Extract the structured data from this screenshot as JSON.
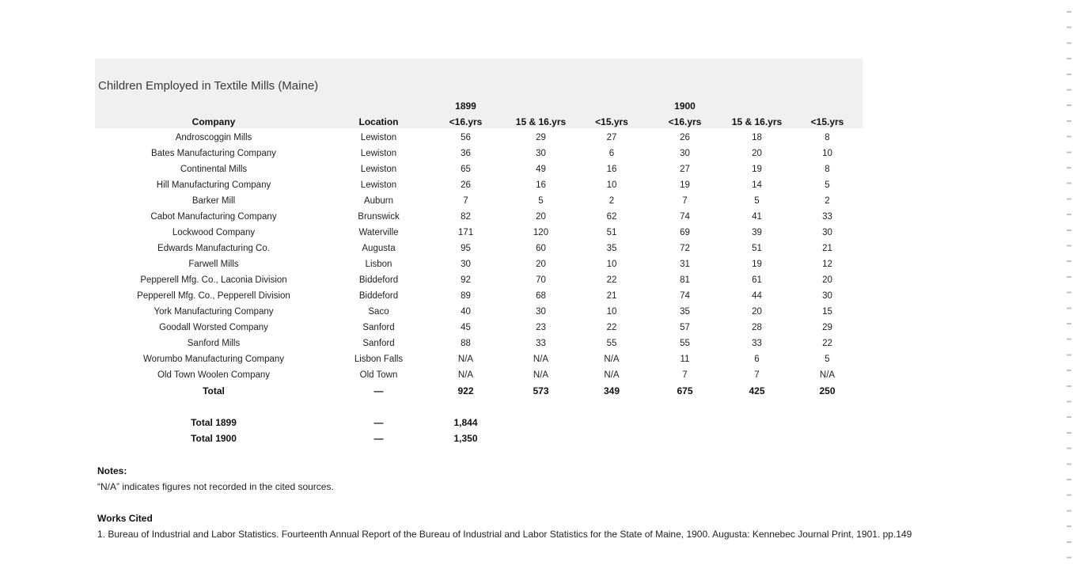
{
  "chart_data": {
    "type": "table",
    "title": "Children Employed in Textile Mills (Maine)",
    "year_groups": [
      "1899",
      "1900"
    ],
    "column_headers": [
      "Company",
      "Location",
      "<16.yrs",
      "15 & 16.yrs",
      "<15.yrs",
      "<16.yrs",
      "15 & 16.yrs",
      "<15.yrs"
    ],
    "rows": [
      [
        "Androscoggin Mills",
        "Lewiston",
        "56",
        "29",
        "27",
        "26",
        "18",
        "8"
      ],
      [
        "Bates Manufacturing Company",
        "Lewiston",
        "36",
        "30",
        "6",
        "30",
        "20",
        "10"
      ],
      [
        "Continental Mills",
        "Lewiston",
        "65",
        "49",
        "16",
        "27",
        "19",
        "8"
      ],
      [
        "Hill Manufacturing Company",
        "Lewiston",
        "26",
        "16",
        "10",
        "19",
        "14",
        "5"
      ],
      [
        "Barker Mill",
        "Auburn",
        "7",
        "5",
        "2",
        "7",
        "5",
        "2"
      ],
      [
        "Cabot Manufacturing Company",
        "Brunswick",
        "82",
        "20",
        "62",
        "74",
        "41",
        "33"
      ],
      [
        "Lockwood Company",
        "Waterville",
        "171",
        "120",
        "51",
        "69",
        "39",
        "30"
      ],
      [
        "Edwards Manufacturing Co.",
        "Augusta",
        "95",
        "60",
        "35",
        "72",
        "51",
        "21"
      ],
      [
        "Farwell Mills",
        "Lisbon",
        "30",
        "20",
        "10",
        "31",
        "19",
        "12"
      ],
      [
        "Pepperell Mfg. Co., Laconia Division",
        "Biddeford",
        "92",
        "70",
        "22",
        "81",
        "61",
        "20"
      ],
      [
        "Pepperell Mfg. Co., Pepperell Division",
        "Biddeford",
        "89",
        "68",
        "21",
        "74",
        "44",
        "30"
      ],
      [
        "York Manufacturing Company",
        "Saco",
        "40",
        "30",
        "10",
        "35",
        "20",
        "15"
      ],
      [
        "Goodall Worsted Company",
        "Sanford",
        "45",
        "23",
        "22",
        "57",
        "28",
        "29"
      ],
      [
        "Sanford Mills",
        "Sanford",
        "88",
        "33",
        "55",
        "55",
        "33",
        "22"
      ],
      [
        "Worumbo Manufacturing Company",
        "Lisbon Falls",
        "N/A",
        "N/A",
        "N/A",
        "11",
        "6",
        "5"
      ],
      [
        "Old Town Woolen Company",
        "Old Town",
        "N/A",
        "N/A",
        "N/A",
        "7",
        "7",
        "N/A"
      ]
    ],
    "total_row": [
      "Total",
      "—",
      "922",
      "573",
      "349",
      "675",
      "425",
      "250"
    ],
    "summary_rows": [
      [
        "Total 1899",
        "—",
        "1,844"
      ],
      [
        "Total 1900",
        "—",
        "1,350"
      ]
    ]
  },
  "notes": {
    "heading": "Notes:",
    "body": "“N/A” indicates figures not recorded in the cited sources."
  },
  "works_cited": {
    "heading": "Works Cited",
    "items": [
      "1. Bureau of Industrial and Labor Statistics. Fourteenth Annual Report of the Bureau of Industrial and Labor Statistics for the State of Maine, 1900. Augusta: Kennebec Journal Print, 1901. pp.149"
    ]
  },
  "colors": {
    "band": "#f0f0f0",
    "text": "#1f1f1f",
    "edge_dash": "#c4c4c4"
  }
}
